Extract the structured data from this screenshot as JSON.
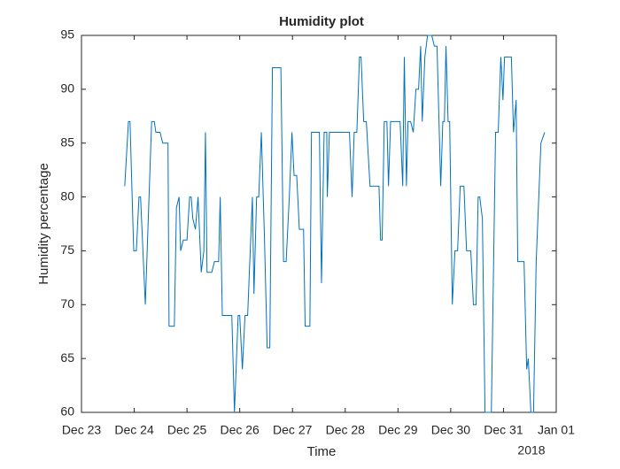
{
  "chart_data": {
    "type": "line",
    "title": "Humidity plot",
    "x_label": "Time",
    "y_label": "Humidity percentage",
    "x_annotation": "2018",
    "xlim": [
      0,
      9
    ],
    "xticks": [
      {
        "value": 0,
        "label": "Dec 23"
      },
      {
        "value": 1,
        "label": "Dec 24"
      },
      {
        "value": 2,
        "label": "Dec 25"
      },
      {
        "value": 3,
        "label": "Dec 26"
      },
      {
        "value": 4,
        "label": "Dec 27"
      },
      {
        "value": 5,
        "label": "Dec 28"
      },
      {
        "value": 6,
        "label": "Dec 29"
      },
      {
        "value": 7,
        "label": "Dec 30"
      },
      {
        "value": 8,
        "label": "Dec 31"
      },
      {
        "value": 9,
        "label": "Jan 01"
      }
    ],
    "ylim": [
      60,
      95
    ],
    "yticks": [
      60,
      65,
      70,
      75,
      80,
      85,
      90,
      95
    ],
    "x": [
      0.82,
      0.89,
      0.92,
      0.99,
      1.04,
      1.09,
      1.12,
      1.21,
      1.33,
      1.38,
      1.41,
      1.49,
      1.54,
      1.64,
      1.66,
      1.76,
      1.8,
      1.85,
      1.88,
      1.93,
      2.0,
      2.05,
      2.08,
      2.11,
      2.16,
      2.21,
      2.27,
      2.32,
      2.35,
      2.38,
      2.47,
      2.52,
      2.6,
      2.63,
      2.67,
      2.85,
      2.9,
      2.97,
      3.0,
      3.05,
      3.1,
      3.15,
      3.24,
      3.27,
      3.32,
      3.36,
      3.41,
      3.47,
      3.52,
      3.57,
      3.62,
      3.78,
      3.83,
      3.88,
      3.94,
      3.99,
      4.03,
      4.08,
      4.13,
      4.21,
      4.24,
      4.33,
      4.36,
      4.51,
      4.55,
      4.6,
      4.65,
      4.66,
      4.7,
      5.08,
      5.13,
      5.17,
      5.22,
      5.27,
      5.3,
      5.35,
      5.4,
      5.47,
      5.64,
      5.67,
      5.7,
      5.74,
      5.79,
      5.82,
      5.86,
      6.04,
      6.09,
      6.12,
      6.16,
      6.19,
      6.24,
      6.29,
      6.34,
      6.39,
      6.43,
      6.46,
      6.51,
      6.56,
      6.64,
      6.69,
      6.74,
      6.81,
      6.85,
      6.88,
      6.91,
      6.95,
      6.98,
      7.03,
      7.08,
      7.13,
      7.18,
      7.25,
      7.3,
      7.38,
      7.43,
      7.48,
      7.52,
      7.55,
      7.6,
      7.65,
      7.77,
      7.85,
      7.9,
      7.95,
      7.99,
      8.02,
      8.15,
      8.19,
      8.24,
      8.27,
      8.39,
      8.44,
      8.47,
      8.52,
      8.57,
      8.62,
      8.71,
      8.78
    ],
    "series": [
      {
        "color": "#0072bd",
        "values": [
          81,
          87,
          87,
          75,
          75,
          80,
          80,
          70,
          87,
          87,
          86,
          86,
          85,
          85,
          68,
          68,
          79,
          80,
          75,
          76,
          76,
          80,
          80,
          78,
          77,
          80,
          73,
          75,
          86,
          73,
          73,
          74,
          74,
          80,
          69,
          69,
          60,
          69,
          69,
          64,
          69,
          69,
          80,
          71,
          80,
          80,
          86,
          76,
          66,
          66,
          92,
          92,
          74,
          74,
          80,
          86,
          82,
          82,
          77,
          77,
          68,
          68,
          86,
          86,
          72,
          86,
          86,
          80,
          86,
          86,
          80,
          86,
          86,
          93,
          93,
          87,
          87,
          81,
          81,
          76,
          76,
          87,
          87,
          81,
          87,
          87,
          81,
          93,
          81,
          87,
          87,
          86,
          90,
          90,
          94,
          87,
          93,
          95,
          95,
          94,
          94,
          81,
          87,
          87,
          94,
          87,
          87,
          70,
          75,
          75,
          81,
          81,
          75,
          75,
          70,
          70,
          80,
          80,
          78,
          60,
          60,
          86,
          86,
          93,
          89,
          93,
          93,
          86,
          89,
          74,
          74,
          64,
          65,
          60,
          60,
          74,
          85,
          86
        ]
      }
    ]
  }
}
